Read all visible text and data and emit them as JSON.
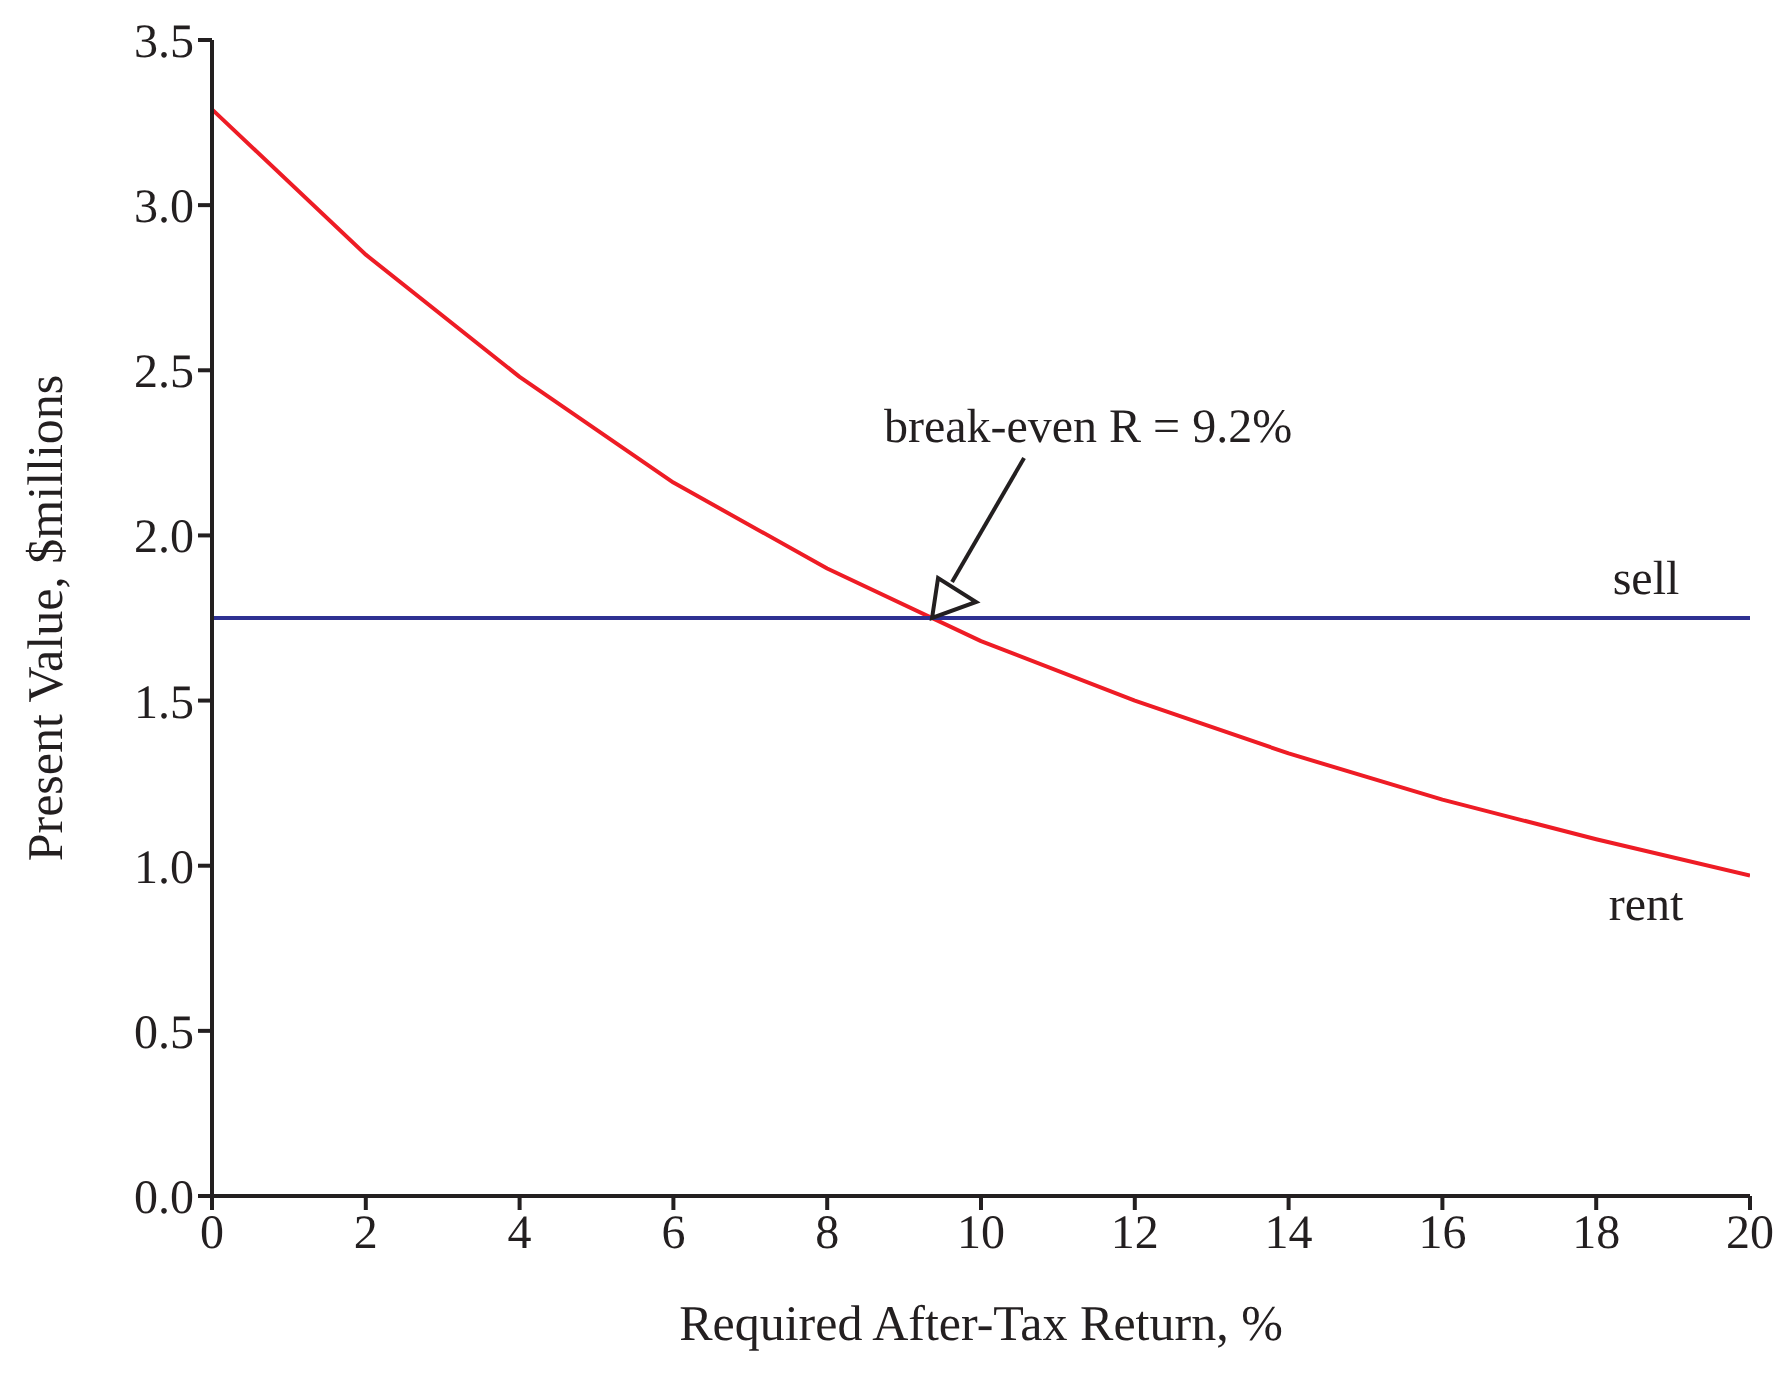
{
  "chart_data": {
    "type": "line",
    "xlabel": "Required After-Tax Return, %",
    "ylabel": "Present Value, $millions",
    "series": [
      {
        "name": "rent",
        "color": "#ee1c25",
        "x": [
          0,
          2,
          4,
          6,
          8,
          10,
          12,
          14,
          16,
          18,
          20
        ],
        "values": [
          3.29,
          2.85,
          2.48,
          2.16,
          1.9,
          1.68,
          1.5,
          1.34,
          1.2,
          1.08,
          0.97
        ]
      },
      {
        "name": "sell",
        "color": "#2e3192",
        "x": [
          0,
          20
        ],
        "values": [
          1.75,
          1.75
        ]
      }
    ],
    "annotations": [
      "break-even R = 9.2%"
    ],
    "xlim": [
      0,
      20
    ],
    "xticks": [
      0,
      2,
      4,
      6,
      8,
      10,
      12,
      14,
      16,
      18,
      20
    ],
    "ylim": [
      0,
      3.5
    ],
    "yticks": [
      {
        "value": 0,
        "label": "0.0"
      },
      0.5,
      {
        "value": 1,
        "label": "1.0"
      },
      1.5,
      {
        "value": 2,
        "label": "2.0"
      },
      2.5,
      {
        "value": 3,
        "label": "3.0"
      },
      3.5
    ],
    "grid": false,
    "legend": false,
    "marker": "none",
    "line_style": "solid"
  }
}
